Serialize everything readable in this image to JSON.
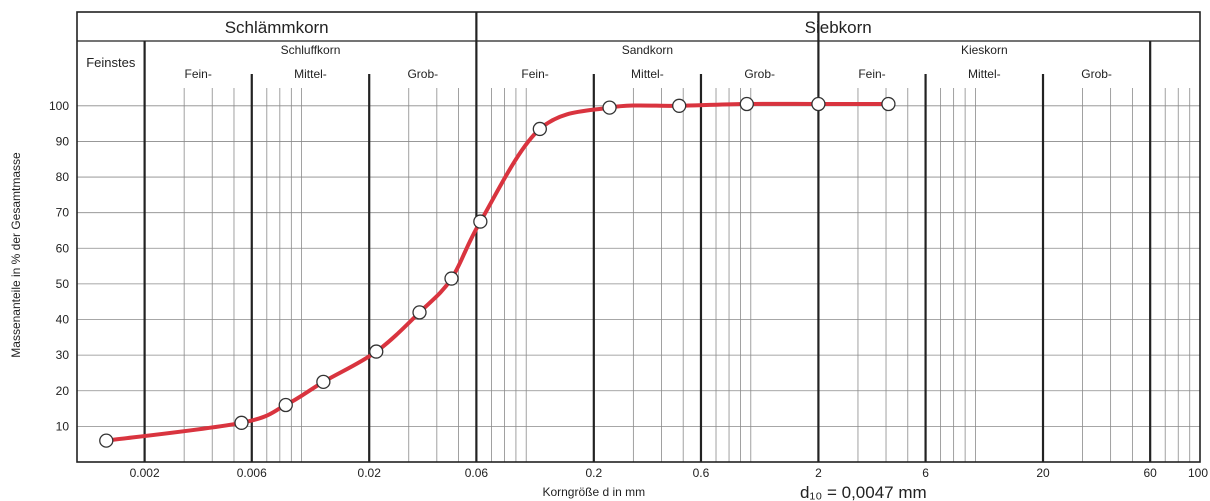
{
  "chart_data": {
    "type": "line",
    "x_scale": "log",
    "xlim": [
      0.001,
      100
    ],
    "ylim": [
      0,
      105
    ],
    "grid": true,
    "xlabel": "Korngröße d in mm",
    "ylabel": "Massenanteile in % der Gesamtmasse",
    "x_ticks": [
      {
        "value": 0.002,
        "label": "0.002"
      },
      {
        "value": 0.006,
        "label": "0.006"
      },
      {
        "value": 0.02,
        "label": "0.02"
      },
      {
        "value": 0.06,
        "label": "0.06"
      },
      {
        "value": 0.2,
        "label": "0.2"
      },
      {
        "value": 0.6,
        "label": "0.6"
      },
      {
        "value": 2,
        "label": "2"
      },
      {
        "value": 6,
        "label": "6"
      },
      {
        "value": 20,
        "label": "20"
      },
      {
        "value": 60,
        "label": "60"
      },
      {
        "value": 100,
        "label": "100"
      }
    ],
    "y_ticks": [
      10,
      20,
      30,
      40,
      50,
      60,
      70,
      80,
      90,
      100
    ],
    "header": {
      "top": [
        {
          "label": "Schlämmkorn",
          "from": 0.001,
          "to": 0.06
        },
        {
          "label": "Siebkorn",
          "from": 0.06,
          "to": 100
        }
      ],
      "groups": [
        {
          "label": "Feinstes",
          "from": 0.001,
          "to": 0.002
        },
        {
          "label": "Schluffkorn",
          "from": 0.002,
          "to": 0.06
        },
        {
          "label": "Sandkorn",
          "from": 0.06,
          "to": 2
        },
        {
          "label": "Kieskorn",
          "from": 2,
          "to": 60
        }
      ],
      "subgroups": [
        {
          "label": "Fein-",
          "from": 0.002,
          "to": 0.006
        },
        {
          "label": "Mittel-",
          "from": 0.006,
          "to": 0.02
        },
        {
          "label": "Grob-",
          "from": 0.02,
          "to": 0.06
        },
        {
          "label": "Fein-",
          "from": 0.06,
          "to": 0.2
        },
        {
          "label": "Mittel-",
          "from": 0.2,
          "to": 0.6
        },
        {
          "label": "Grob-",
          "from": 0.6,
          "to": 2
        },
        {
          "label": "Fein-",
          "from": 2,
          "to": 6
        },
        {
          "label": "Mittel-",
          "from": 6,
          "to": 20
        },
        {
          "label": "Grob-",
          "from": 20,
          "to": 60
        }
      ]
    },
    "series": [
      {
        "color": "#d9343f",
        "points": [
          {
            "x": 0.00135,
            "y": 6
          },
          {
            "x": 0.0054,
            "y": 11
          },
          {
            "x": 0.0085,
            "y": 16
          },
          {
            "x": 0.0125,
            "y": 22.5
          },
          {
            "x": 0.0215,
            "y": 31
          },
          {
            "x": 0.0335,
            "y": 42
          },
          {
            "x": 0.0465,
            "y": 51.5
          },
          {
            "x": 0.0625,
            "y": 67.5
          },
          {
            "x": 0.115,
            "y": 93.5
          },
          {
            "x": 0.235,
            "y": 99.5
          },
          {
            "x": 0.48,
            "y": 100
          },
          {
            "x": 0.96,
            "y": 100.5
          },
          {
            "x": 2.0,
            "y": 100.5
          },
          {
            "x": 4.1,
            "y": 100.5
          }
        ]
      }
    ],
    "annotation": "d₁₀ = 0,0047 mm"
  }
}
